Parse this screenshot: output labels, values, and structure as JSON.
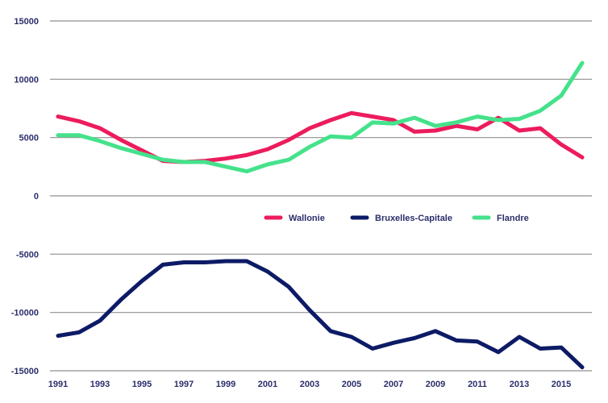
{
  "chart_data": {
    "type": "line",
    "title": "",
    "xlabel": "",
    "ylabel": "",
    "x": [
      1991,
      1992,
      1993,
      1994,
      1995,
      1996,
      1997,
      1998,
      1999,
      2000,
      2001,
      2002,
      2003,
      2004,
      2005,
      2006,
      2007,
      2008,
      2009,
      2010,
      2011,
      2012,
      2013,
      2014,
      2015,
      2016
    ],
    "xlim": [
      1991,
      2016
    ],
    "ylim": [
      -15000,
      15000
    ],
    "x_tick_labels": [
      "1991",
      "1993",
      "1995",
      "1997",
      "1999",
      "2001",
      "2003",
      "2005",
      "2007",
      "2009",
      "2011",
      "2013",
      "2015"
    ],
    "y_tick_labels": [
      "15000",
      "10000",
      "5000",
      "0",
      "-5000",
      "-10000",
      "-15000"
    ],
    "y_ticks": [
      15000,
      10000,
      5000,
      0,
      -5000,
      -10000,
      -15000
    ],
    "grid": true,
    "legend_position": "center",
    "series": [
      {
        "name": "Wallonie",
        "color": "#ec1c5d",
        "values": [
          6800,
          6400,
          5800,
          4800,
          3900,
          3000,
          2900,
          3000,
          3200,
          3500,
          4000,
          4800,
          5800,
          6500,
          7100,
          6800,
          6500,
          5500,
          5600,
          6000,
          5700,
          6700,
          5600,
          5800,
          4400,
          3300
        ]
      },
      {
        "name": "Bruxelles-Capitale",
        "color": "#0d1b66",
        "values": [
          -12000,
          -11700,
          -10700,
          -8900,
          -7300,
          -5900,
          -5700,
          -5700,
          -5600,
          -5600,
          -6500,
          -7800,
          -9800,
          -11600,
          -12100,
          -13100,
          -12600,
          -12200,
          -11600,
          -12400,
          -12500,
          -13400,
          -12100,
          -13100,
          -13000,
          -14700
        ]
      },
      {
        "name": "Flandre",
        "color": "#45e28b",
        "values": [
          5200,
          5200,
          4700,
          4100,
          3600,
          3100,
          2900,
          2900,
          2500,
          2100,
          2700,
          3100,
          4200,
          5100,
          5000,
          6300,
          6200,
          6700,
          6000,
          6300,
          6800,
          6500,
          6600,
          7300,
          8600,
          11400
        ]
      }
    ]
  }
}
